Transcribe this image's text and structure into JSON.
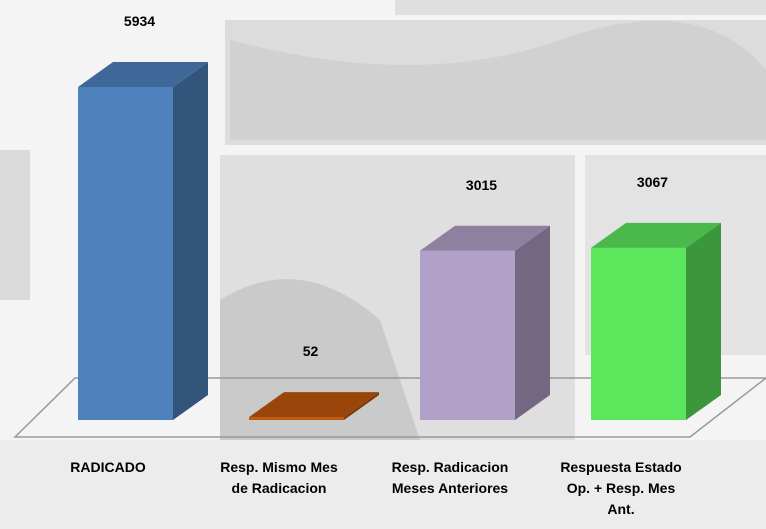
{
  "chart_data": {
    "type": "bar",
    "categories": [
      "RADICADO",
      "Resp. Mismo Mes de Radicacion",
      "Resp. Radicacion Meses Anteriores",
      "Respuesta Estado Op. + Resp. Mes Ant."
    ],
    "values": [
      5934,
      52,
      3015,
      3067
    ],
    "colors": [
      "#4f81bd",
      "#c0580e",
      "#b1a0c7",
      "#5ce65c"
    ]
  }
}
